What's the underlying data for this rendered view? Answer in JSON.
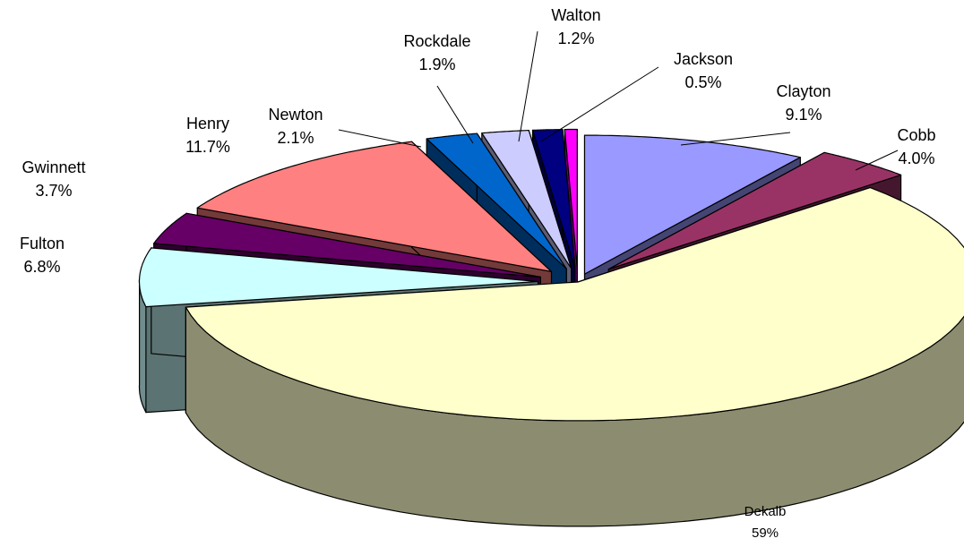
{
  "chart_data": {
    "type": "pie",
    "title": "",
    "slices": [
      {
        "label": "Clayton",
        "value": 9.1,
        "value_text": "9.1%",
        "color": "#9999ff"
      },
      {
        "label": "Cobb",
        "value": 4.0,
        "value_text": "4.0%",
        "color": "#993366"
      },
      {
        "label": "Dekalb",
        "value": 59,
        "value_text": "59%",
        "color": "#ffffcc"
      },
      {
        "label": "Fulton",
        "value": 6.8,
        "value_text": "6.8%",
        "color": "#ccffff"
      },
      {
        "label": "Gwinnett",
        "value": 3.7,
        "value_text": "3.7%",
        "color": "#660066"
      },
      {
        "label": "Henry",
        "value": 11.7,
        "value_text": "11.7%",
        "color": "#ff8080"
      },
      {
        "label": "Newton",
        "value": 2.1,
        "value_text": "2.1%",
        "color": "#0066cc"
      },
      {
        "label": "Rockdale",
        "value": 1.9,
        "value_text": "1.9%",
        "color": "#ccccff"
      },
      {
        "label": "Walton",
        "value": 1.2,
        "value_text": "1.2%",
        "color": "#000080"
      },
      {
        "label": "Jackson",
        "value": 0.5,
        "value_text": "0.5%",
        "color": "#ff00ff"
      }
    ],
    "style": "3d-exploded"
  }
}
